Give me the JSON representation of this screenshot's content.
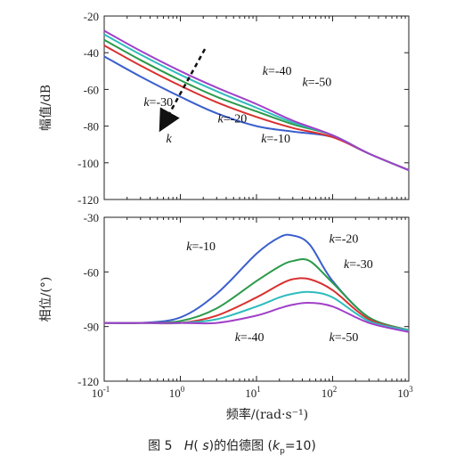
{
  "caption": {
    "prefix": "图 5",
    "func_H": "H",
    "func_open": "(",
    "func_s": "s",
    "func_close": ")",
    "middle": "的伯德图 (",
    "kp_k": "k",
    "kp_sub": "p",
    "kp_rest": "=10)"
  },
  "chart_data": [
    {
      "type": "line",
      "panel": "magnitude",
      "ylabel": "幅值/dB",
      "xscale": "log",
      "xlim": [
        0.1,
        1000
      ],
      "ylim": [
        -120,
        -20
      ],
      "yticks": [
        -20,
        -40,
        -60,
        -80,
        -100,
        -120
      ],
      "ytick_labels": [
        "-20",
        "-40",
        "-60",
        "-80",
        "-100",
        "-120"
      ],
      "x": [
        0.1,
        0.3,
        1,
        3,
        10,
        30,
        100,
        300,
        1000
      ],
      "series": [
        {
          "name": "k=-10",
          "color": "#3a5fcd",
          "values": [
            -42,
            -53,
            -64,
            -73,
            -80,
            -83,
            -86,
            -95,
            -104
          ]
        },
        {
          "name": "k=-20",
          "color": "#d93030",
          "values": [
            -36,
            -47,
            -58,
            -67,
            -75,
            -81,
            -86,
            -95,
            -104
          ]
        },
        {
          "name": "k=-30",
          "color": "#2a9a4a",
          "values": [
            -33,
            -44,
            -55,
            -64,
            -72,
            -79,
            -85,
            -95,
            -104
          ]
        },
        {
          "name": "k=-40",
          "color": "#2fbcbc",
          "values": [
            -30,
            -41,
            -52,
            -61,
            -70,
            -78,
            -85,
            -95,
            -104
          ]
        },
        {
          "name": "k=-50",
          "color": "#a040c8",
          "values": [
            -28,
            -39,
            -50,
            -59,
            -68,
            -77,
            -85,
            -95,
            -104
          ]
        }
      ],
      "annotations": [
        {
          "k": "k",
          "text": "=-40",
          "x": 12,
          "y": -52
        },
        {
          "k": "k",
          "text": "=-50",
          "x": 40,
          "y": -58
        },
        {
          "k": "k",
          "text": "=-30",
          "x": 0.33,
          "y": -69
        },
        {
          "k": "k",
          "text": "=-20",
          "x": 3.1,
          "y": -78
        },
        {
          "k": "k",
          "text": "=-10",
          "x": 11.5,
          "y": -89
        },
        {
          "k": "k",
          "text": "",
          "x": 0.65,
          "y": -89
        }
      ],
      "arrow": {
        "from": [
          2.1,
          -38
        ],
        "to": [
          0.6,
          -79
        ]
      }
    },
    {
      "type": "line",
      "panel": "phase",
      "ylabel": "相位/(°)",
      "xlabel": "频率/(rad·s⁻¹)",
      "xscale": "log",
      "xlim": [
        0.1,
        1000
      ],
      "ylim": [
        -120,
        -30
      ],
      "yticks": [
        -30,
        -60,
        -90,
        -120
      ],
      "ytick_labels": [
        "-30",
        "-60",
        "-90",
        "-120"
      ],
      "xticks": [
        0.1,
        1,
        10,
        100,
        1000
      ],
      "xtick_base": "10",
      "xtick_exps": [
        "-1",
        "0",
        "1",
        "2",
        "3"
      ],
      "x": [
        0.1,
        0.3,
        1,
        3,
        10,
        20,
        30,
        50,
        100,
        300,
        1000
      ],
      "series": [
        {
          "name": "k=-10",
          "color": "#3a5fcd",
          "values": [
            -88,
            -88,
            -85,
            -72,
            -50,
            -41,
            -40,
            -45,
            -65,
            -85,
            -92
          ]
        },
        {
          "name": "k=-20",
          "color": "#2a9a4a",
          "values": [
            -88,
            -88,
            -87,
            -80,
            -65,
            -57,
            -54,
            -54,
            -66,
            -85,
            -92
          ]
        },
        {
          "name": "k=-30",
          "color": "#d93030",
          "values": [
            -88,
            -88,
            -88,
            -84,
            -74,
            -67,
            -64,
            -64,
            -70,
            -86,
            -92
          ]
        },
        {
          "name": "k=-40",
          "color": "#2fbcbc",
          "values": [
            -88,
            -88,
            -88,
            -86,
            -79,
            -74,
            -72,
            -71,
            -74,
            -87,
            -92
          ]
        },
        {
          "name": "k=-50",
          "color": "#a040c8",
          "values": [
            -88,
            -88,
            -88,
            -88,
            -84,
            -80,
            -78,
            -77,
            -79,
            -88,
            -93
          ]
        }
      ],
      "annotations": [
        {
          "k": "k",
          "text": "=-10",
          "x": 1.2,
          "y": -48
        },
        {
          "k": "k",
          "text": "=-20",
          "x": 90,
          "y": -44
        },
        {
          "k": "k",
          "text": "=-30",
          "x": 140,
          "y": -58
        },
        {
          "k": "k",
          "text": "=-40",
          "x": 5.2,
          "y": -98
        },
        {
          "k": "k",
          "text": "=-50",
          "x": 90,
          "y": -98
        }
      ]
    }
  ]
}
